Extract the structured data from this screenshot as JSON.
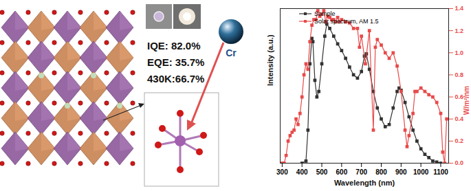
{
  "chart_data": {
    "type": "line",
    "xlabel": "Wavelength (nm)",
    "ylabel": "Intensity (a.u.)",
    "y2label": "W/m²/nm",
    "annotations": [
      "IQE:  82.0%",
      "EQE: 35.7%",
      "430K:66.7%",
      "Cr"
    ],
    "xlim": [
      290,
      1140
    ],
    "xticks": [
      300,
      400,
      500,
      600,
      700,
      800,
      900,
      1000,
      1100
    ],
    "ylim": [
      0,
      1.4
    ],
    "yticks": [],
    "y2lim": [
      0,
      1.4
    ],
    "y2ticks": [
      {
        "value": 0,
        "label": "0.0"
      },
      {
        "value": 0.2,
        "label": "0.2"
      },
      {
        "value": 0.4,
        "label": "0.4"
      },
      {
        "value": 0.6,
        "label": "0.6"
      },
      {
        "value": 0.8,
        "label": "0.8"
      },
      {
        "value": 1,
        "label": "1.0"
      },
      {
        "value": 1.2,
        "label": "1.2"
      },
      {
        "value": 1.4,
        "label": "1.4"
      }
    ],
    "legend": "upper left",
    "grid": false,
    "series": [
      {
        "name": "Sample",
        "color": "#333333",
        "marker": "square",
        "line_style": "solid",
        "x": [
          400,
          420,
          430,
          440,
          450,
          455,
          465,
          475,
          485,
          500,
          515,
          525,
          540,
          560,
          580,
          600,
          620,
          640,
          660,
          680,
          700,
          715,
          725,
          740,
          760,
          780,
          800,
          820,
          840,
          860,
          880,
          890,
          900,
          920,
          940,
          960,
          980,
          1000,
          1020,
          1040,
          1060,
          1080,
          1100
        ],
        "values": [
          0,
          0.02,
          0.3,
          0.9,
          1.13,
          1.1,
          0.75,
          0.6,
          0.65,
          0.9,
          1.15,
          1.26,
          1.22,
          1.15,
          1.08,
          1.02,
          0.95,
          0.87,
          0.8,
          0.77,
          0.83,
          0.97,
          0.99,
          0.85,
          0.65,
          0.5,
          0.4,
          0.33,
          0.35,
          0.5,
          0.65,
          0.68,
          0.66,
          0.55,
          0.42,
          0.3,
          0.2,
          0.13,
          0.08,
          0.05,
          0.02,
          0.01,
          0
        ]
      },
      {
        "name": "Solar spectrum, AM 1.5",
        "color": "#e84a4a",
        "marker": "square",
        "line_style": "solid",
        "axis": "y2",
        "x": [
          300,
          310,
          320,
          330,
          340,
          350,
          360,
          370,
          380,
          390,
          400,
          410,
          420,
          430,
          440,
          450,
          460,
          470,
          480,
          490,
          500,
          510,
          520,
          530,
          540,
          550,
          560,
          570,
          580,
          590,
          600,
          620,
          640,
          660,
          680,
          690,
          700,
          720,
          740,
          760,
          770,
          780,
          800,
          820,
          840,
          860,
          880,
          900,
          920,
          930,
          940,
          960,
          970,
          980,
          1000,
          1020,
          1040,
          1060,
          1080,
          1100,
          1110,
          1120,
          1130
        ],
        "values": [
          0,
          0,
          0.07,
          0.2,
          0.25,
          0.28,
          0.3,
          0.4,
          0.35,
          0.45,
          0.6,
          0.8,
          0.9,
          0.85,
          1.1,
          1.25,
          1.3,
          1.3,
          1.38,
          1.33,
          1.35,
          1.38,
          1.28,
          1.33,
          1.32,
          1.3,
          1.3,
          1.28,
          1.32,
          1.28,
          1.3,
          1.28,
          1.27,
          1.22,
          1.22,
          1.05,
          1.15,
          0.9,
          1.2,
          0.3,
          1.05,
          1.12,
          1.07,
          1.0,
          0.95,
          1.0,
          0.88,
          0.65,
          0.3,
          0.15,
          0.25,
          0.45,
          0.65,
          0.65,
          0.68,
          0.65,
          0.62,
          0.6,
          0.55,
          0.45,
          0.1,
          0.0,
          0.4
        ]
      }
    ]
  }
}
